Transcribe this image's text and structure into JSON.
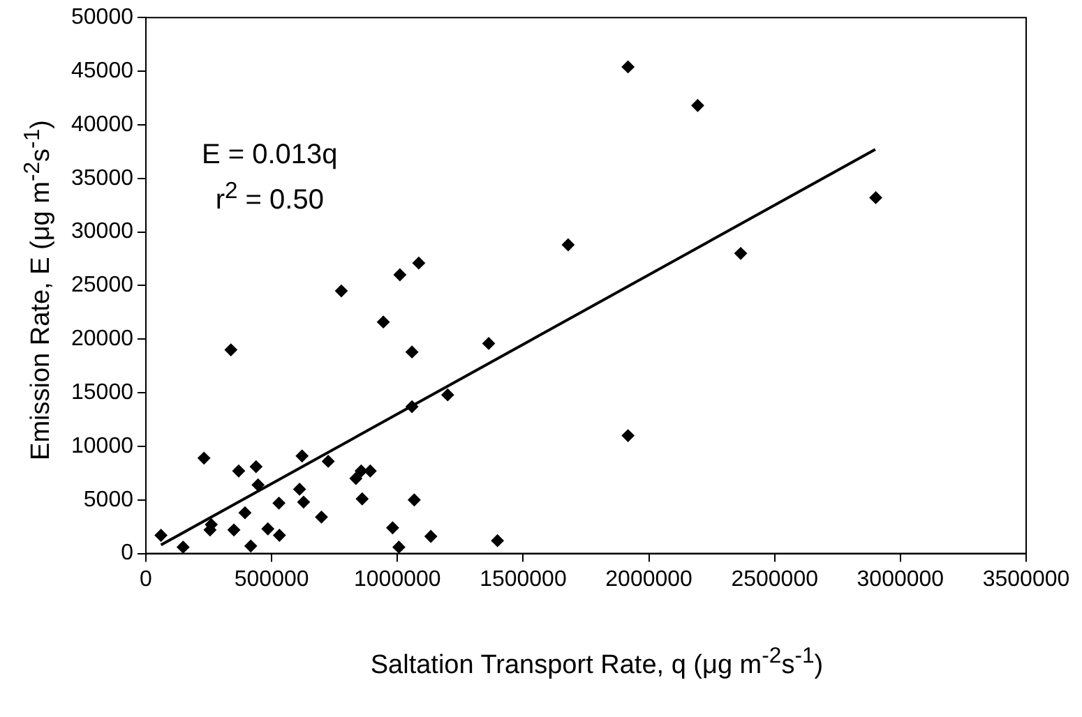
{
  "chart_data": {
    "type": "scatter",
    "xlabel": "Saltation Transport Rate, q  (μg m$^{-2}$s$^{-1}$)",
    "ylabel": "Emission Rate, E  (μg m$^{-2}$s$^{-1}$)",
    "annotations": [
      "E = 0.013q",
      "r$^{2}$ = 0.50"
    ],
    "xlim": [
      0,
      3500000
    ],
    "xticks": [
      0,
      500000,
      1000000,
      1500000,
      2000000,
      2500000,
      3000000,
      3500000
    ],
    "ylim": [
      0,
      50000
    ],
    "yticks": [
      0,
      5000,
      10000,
      15000,
      20000,
      25000,
      30000,
      35000,
      40000,
      45000,
      50000
    ],
    "grid": false,
    "legend": false,
    "series": [
      {
        "type": "scatter",
        "color": "#000000",
        "marker": "diamond",
        "x": [
          60000,
          148000,
          231000,
          255000,
          260000,
          338000,
          350000,
          369000,
          394000,
          417000,
          438000,
          446000,
          485000,
          529000,
          531000,
          611000,
          621000,
          627000,
          698000,
          725000,
          777000,
          835000,
          856000,
          892000,
          860000,
          944000,
          981000,
          1006000,
          1010000,
          1058000,
          1058000,
          1067000,
          1085000,
          1133000,
          1200000,
          1363000,
          1398000,
          1679000,
          1917000,
          1917000,
          2194000,
          2365000,
          2902000
        ],
        "values": [
          1700,
          600,
          8900,
          2200,
          2700,
          19000,
          2200,
          7700,
          3800,
          700,
          8100,
          6400,
          2300,
          4700,
          1700,
          6000,
          9100,
          4800,
          3400,
          8600,
          24500,
          7000,
          7700,
          7700,
          5100,
          21600,
          2400,
          600,
          26000,
          18800,
          13700,
          5000,
          27100,
          1600,
          14800,
          19600,
          1200,
          28800,
          45400,
          11000,
          41800,
          28000,
          33200
        ]
      },
      {
        "type": "line",
        "color": "#000000",
        "marker": "none",
        "line_style": "solid",
        "x": [
          60000,
          2900000
        ],
        "values": [
          800,
          37700
        ]
      }
    ]
  }
}
